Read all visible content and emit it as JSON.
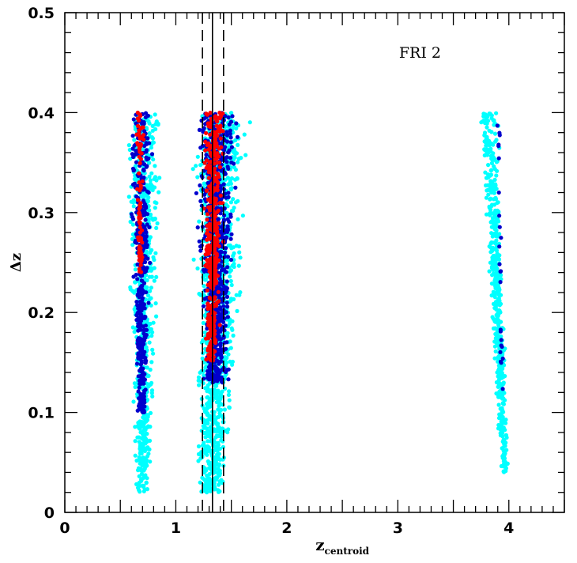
{
  "chart_data": {
    "type": "scatter",
    "title": "",
    "annotation": "FRI 2",
    "xlabel": "z",
    "xlabel_subscript": "centroid",
    "ylabel": "Δz",
    "xlim": [
      0,
      4.5
    ],
    "ylim": [
      0,
      0.5
    ],
    "x_ticks": [
      0,
      1,
      2,
      3,
      4
    ],
    "y_ticks": [
      0,
      0.1,
      0.2,
      0.3,
      0.4,
      0.5
    ],
    "x_ticks_labels": [
      "0",
      "1",
      "2",
      "3",
      "4"
    ],
    "y_ticks_labels": [
      "0",
      "0.1",
      "0.2",
      "0.3",
      "0.4",
      "0.5"
    ],
    "grid": false,
    "vertical_lines": [
      {
        "x": 1.33,
        "style": "solid"
      },
      {
        "x": 1.24,
        "style": "dashed"
      },
      {
        "x": 1.43,
        "style": "dashed"
      }
    ],
    "series": [
      {
        "color": "#00ffff",
        "clusters": [
          {
            "center_top": 0.72,
            "center_bottom": 0.7,
            "halfwidth_top": 0.15,
            "halfwidth_bottom": 0.06,
            "dz_min": 0.02,
            "dz_max": 0.4,
            "n": 650
          },
          {
            "center_top": 1.42,
            "center_bottom": 1.32,
            "halfwidth_top": 0.24,
            "halfwidth_bottom": 0.12,
            "dz_min": 0.02,
            "dz_max": 0.4,
            "n": 1100
          },
          {
            "center_top": 3.82,
            "center_bottom": 3.96,
            "halfwidth_top": 0.08,
            "halfwidth_bottom": 0.03,
            "dz_min": 0.04,
            "dz_max": 0.4,
            "n": 500
          }
        ]
      },
      {
        "color": "#0000cd",
        "clusters": [
          {
            "center_top": 0.69,
            "center_bottom": 0.69,
            "halfwidth_top": 0.1,
            "halfwidth_bottom": 0.04,
            "dz_min": 0.1,
            "dz_max": 0.4,
            "n": 420
          },
          {
            "center_top": 1.37,
            "center_bottom": 1.36,
            "halfwidth_top": 0.17,
            "halfwidth_bottom": 0.1,
            "dz_min": 0.13,
            "dz_max": 0.4,
            "n": 750
          },
          {
            "center_top": 3.9,
            "center_bottom": 3.94,
            "halfwidth_top": 0.03,
            "halfwidth_bottom": 0.01,
            "dz_min": 0.12,
            "dz_max": 0.4,
            "n": 25
          }
        ]
      },
      {
        "color": "#ff0000",
        "clusters": [
          {
            "center_top": 0.67,
            "center_bottom": 0.68,
            "halfwidth_top": 0.04,
            "halfwidth_bottom": 0.015,
            "dz_min": 0.24,
            "dz_max": 0.4,
            "n": 80
          },
          {
            "center_top": 1.35,
            "center_bottom": 1.32,
            "halfwidth_top": 0.1,
            "halfwidth_bottom": 0.05,
            "dz_min": 0.15,
            "dz_max": 0.4,
            "n": 420
          }
        ]
      }
    ]
  }
}
